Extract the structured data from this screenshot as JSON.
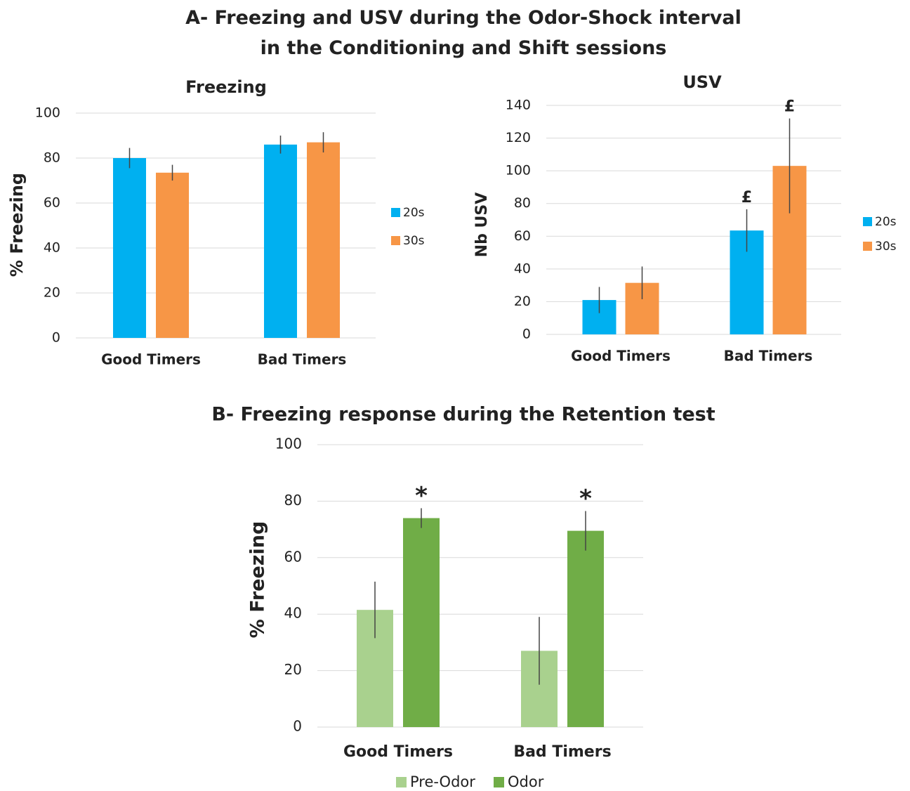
{
  "title": "A- Freezing and USV during the Odor-Shock interval in the Conditioning and Shift sessions",
  "chart_data": [
    {
      "type": "bar",
      "title": "Freezing",
      "y_label": "% Freezing",
      "categories": [
        "Good Timers",
        "Bad Timers"
      ],
      "series": [
        {
          "name": "20s",
          "color": "#00b0f0",
          "values": [
            80,
            86
          ],
          "errors": [
            4.5,
            4
          ]
        },
        {
          "name": "30s",
          "color": "#f79646",
          "values": [
            73.5,
            87
          ],
          "errors": [
            3.5,
            4.5
          ]
        }
      ],
      "ylim": [
        0,
        100
      ],
      "yticks": [
        0,
        20,
        40,
        60,
        80,
        100
      ],
      "grid": true,
      "legend": "right"
    },
    {
      "type": "bar",
      "title": "USV",
      "y_label": "Nb USV",
      "categories": [
        "Good Timers",
        "Bad Timers"
      ],
      "series": [
        {
          "name": "20s",
          "color": "#00b0f0",
          "values": [
            21,
            63.5
          ],
          "errors": [
            8,
            13
          ],
          "markers": [
            null,
            "£"
          ]
        },
        {
          "name": "30s",
          "color": "#f79646",
          "values": [
            31.5,
            103
          ],
          "errors": [
            10,
            29
          ],
          "markers": [
            null,
            "£"
          ]
        }
      ],
      "ylim": [
        0,
        140
      ],
      "yticks": [
        0,
        20,
        40,
        60,
        80,
        100,
        120,
        140
      ],
      "grid": true,
      "legend": "right"
    },
    {
      "type": "bar",
      "title": "B- Freezing response during the Retention test",
      "y_label": "% Freezing",
      "categories": [
        "Good Timers",
        "Bad Timers"
      ],
      "series": [
        {
          "name": "Pre-Odor",
          "color": "#a9d18e",
          "values": [
            41.5,
            27
          ],
          "errors": [
            10,
            12
          ]
        },
        {
          "name": "Odor",
          "color": "#70ad47",
          "values": [
            74,
            69.5
          ],
          "errors": [
            3.5,
            7
          ],
          "markers": [
            "*",
            "*"
          ]
        }
      ],
      "ylim": [
        0,
        100
      ],
      "yticks": [
        0,
        20,
        40,
        60,
        80,
        100
      ],
      "grid": true,
      "legend": "bottom"
    }
  ]
}
